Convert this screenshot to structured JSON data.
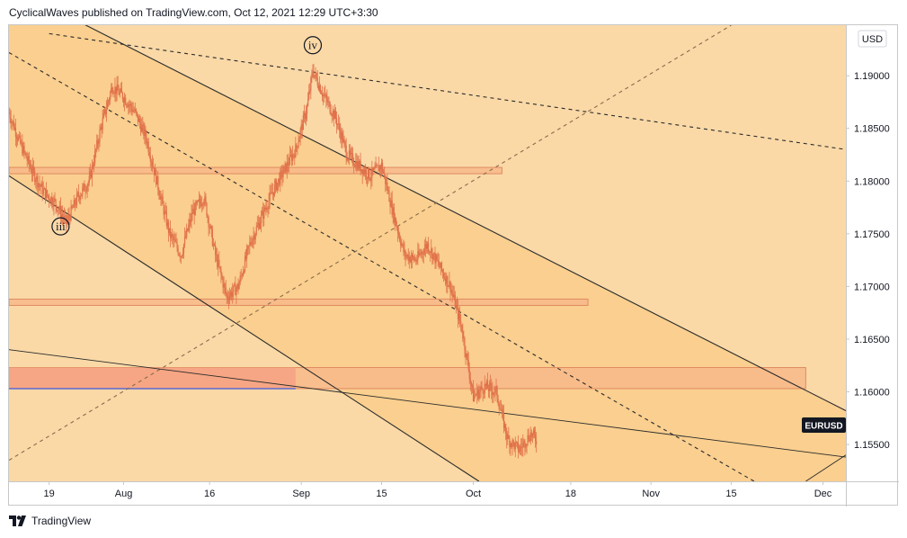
{
  "header": {
    "text": "CyclicalWaves published on TradingView.com, Oct 12, 2021 12:29 UTC+3:30"
  },
  "footer": {
    "brand": "TradingView",
    "logo_icon": "tradingview-logo-icon"
  },
  "colors": {
    "background": "#fad9a7",
    "channel_fill": "#f9cc8b",
    "zone_fill": "#f7b98a",
    "zone_strong": "#f5a082",
    "candle": "#e0714a"
  },
  "chart_data": {
    "type": "candlestick",
    "symbol": "EURUSD",
    "currency": "USD",
    "y_ticks": [
      1.19,
      1.185,
      1.18,
      1.175,
      1.17,
      1.165,
      1.16,
      1.155
    ],
    "y_tick_labels": [
      "1.19000",
      "1.18500",
      "1.18000",
      "1.17500",
      "1.17000",
      "1.16500",
      "1.16000",
      "1.15500"
    ],
    "ylim": [
      1.1515,
      1.1948
    ],
    "xlim": [
      "2021-07-12",
      "2021-12-05"
    ],
    "x_ticks": [
      {
        "date": "2021-07-19",
        "label": "19"
      },
      {
        "date": "2021-08-01",
        "label": "Aug"
      },
      {
        "date": "2021-08-16",
        "label": "16"
      },
      {
        "date": "2021-09-01",
        "label": "Sep"
      },
      {
        "date": "2021-09-15",
        "label": "15"
      },
      {
        "date": "2021-10-01",
        "label": "Oct"
      },
      {
        "date": "2021-10-18",
        "label": "18"
      },
      {
        "date": "2021-11-01",
        "label": "Nov"
      },
      {
        "date": "2021-11-15",
        "label": "15"
      },
      {
        "date": "2021-12-01",
        "label": "Dec"
      }
    ],
    "last_price_label": "EURUSD",
    "price_path": [
      [
        "2021-07-12",
        1.1865
      ],
      [
        "2021-07-14",
        1.1835
      ],
      [
        "2021-07-16",
        1.181
      ],
      [
        "2021-07-18",
        1.179
      ],
      [
        "2021-07-20",
        1.178
      ],
      [
        "2021-07-22",
        1.176
      ],
      [
        "2021-07-24",
        1.1785
      ],
      [
        "2021-07-26",
        1.18
      ],
      [
        "2021-07-28",
        1.185
      ],
      [
        "2021-07-30",
        1.189
      ],
      [
        "2021-08-01",
        1.188
      ],
      [
        "2021-08-03",
        1.1865
      ],
      [
        "2021-08-05",
        1.184
      ],
      [
        "2021-08-07",
        1.1795
      ],
      [
        "2021-08-09",
        1.175
      ],
      [
        "2021-08-11",
        1.173
      ],
      [
        "2021-08-13",
        1.177
      ],
      [
        "2021-08-15",
        1.1785
      ],
      [
        "2021-08-17",
        1.173
      ],
      [
        "2021-08-19",
        1.169
      ],
      [
        "2021-08-21",
        1.17
      ],
      [
        "2021-08-23",
        1.174
      ],
      [
        "2021-08-25",
        1.1765
      ],
      [
        "2021-08-27",
        1.179
      ],
      [
        "2021-08-29",
        1.181
      ],
      [
        "2021-08-31",
        1.183
      ],
      [
        "2021-09-02",
        1.187
      ],
      [
        "2021-09-03",
        1.1905
      ],
      [
        "2021-09-05",
        1.188
      ],
      [
        "2021-09-07",
        1.186
      ],
      [
        "2021-09-09",
        1.1825
      ],
      [
        "2021-09-11",
        1.1815
      ],
      [
        "2021-09-13",
        1.1805
      ],
      [
        "2021-09-15",
        1.1815
      ],
      [
        "2021-09-17",
        1.177
      ],
      [
        "2021-09-19",
        1.173
      ],
      [
        "2021-09-21",
        1.1725
      ],
      [
        "2021-09-23",
        1.174
      ],
      [
        "2021-09-25",
        1.172
      ],
      [
        "2021-09-27",
        1.17
      ],
      [
        "2021-09-29",
        1.166
      ],
      [
        "2021-10-01",
        1.1595
      ],
      [
        "2021-10-03",
        1.1605
      ],
      [
        "2021-10-05",
        1.16
      ],
      [
        "2021-10-07",
        1.1555
      ],
      [
        "2021-10-09",
        1.1545
      ],
      [
        "2021-10-11",
        1.156
      ],
      [
        "2021-10-12",
        1.1555
      ]
    ],
    "zones": [
      {
        "x0": "2021-07-12",
        "x1": "2021-10-06",
        "y0": 1.1807,
        "y1": 1.1813
      },
      {
        "x0": "2021-07-12",
        "x1": "2021-10-21",
        "y0": 1.1682,
        "y1": 1.1688
      },
      {
        "x0": "2021-07-12",
        "x1": "2021-11-28",
        "y0": 1.1603,
        "y1": 1.1623
      }
    ],
    "lines": [
      {
        "name": "channel-upper",
        "style": "solid",
        "x0": "2021-07-12",
        "y0": 1.1985,
        "x1": "2021-12-05",
        "y1": 1.1582
      },
      {
        "name": "channel-lower",
        "style": "solid",
        "x0": "2021-07-12",
        "y0": 1.1805,
        "x1": "2021-10-02",
        "y1": 1.1515
      },
      {
        "name": "channel-mid",
        "style": "dashed",
        "x0": "2021-07-12",
        "y0": 1.1922,
        "x1": "2021-11-19",
        "y1": 1.1515
      },
      {
        "name": "upper-trend",
        "style": "dashed",
        "x0": "2021-07-19",
        "y0": 1.194,
        "x1": "2021-12-05",
        "y1": 1.183
      },
      {
        "name": "rising-trend",
        "style": "dashed",
        "x0": "2021-07-12",
        "y0": 1.1535,
        "x1": "2021-11-15",
        "y1": 1.1948
      },
      {
        "name": "lower-trend",
        "style": "solid",
        "x0": "2021-07-12",
        "y0": 1.164,
        "x1": "2021-12-05",
        "y1": 1.1538
      },
      {
        "name": "lower-right-ray",
        "style": "solid",
        "x0": "2021-11-28",
        "y0": 1.1515,
        "x1": "2021-12-05",
        "y1": 1.154
      }
    ],
    "wave_labels": [
      {
        "text": "iii",
        "date": "2021-07-21",
        "price": 1.1757
      },
      {
        "text": "iv",
        "date": "2021-09-03",
        "price": 1.1929
      }
    ]
  }
}
